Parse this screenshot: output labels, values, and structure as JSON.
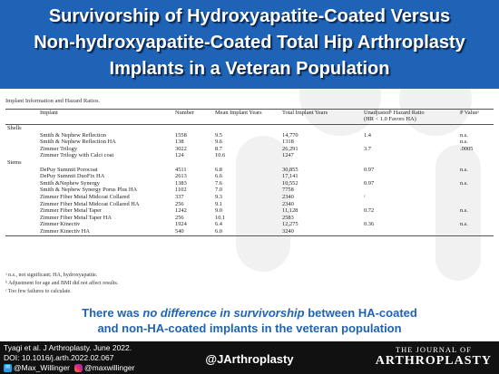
{
  "title": "Survivorship of Hydroxyapatite-Coated Versus\nNon-hydroxyapatite-Coated Total Hip Arthroplasty\nImplants in a Veteran Population",
  "table": {
    "caption": "Implant Information and Hazard Ratios.",
    "headers": {
      "implant": "Implant",
      "number": "Number",
      "mean": "Mean Implant Years",
      "total": "Total Implant Years",
      "hr_line1": "Unadjustedᵇ Hazard Ratio",
      "hr_line2": "(HR < 1.0 Favors HA)",
      "p": "P Valueᵃ"
    },
    "sections": [
      {
        "name": "Shells",
        "rows": [
          {
            "implant": "Smith & Nephew Reflection",
            "number": "1558",
            "mean": "9.5",
            "total": "14,770",
            "hr": "1.4",
            "p": "n.s."
          },
          {
            "implant": "Smith & Nephew Reflection HA",
            "number": "138",
            "mean": "9.6",
            "total": "1318",
            "hr": "",
            "p": "n.s."
          },
          {
            "implant": "Zimmer Trilogy",
            "number": "3022",
            "mean": "8.7",
            "total": "26,291",
            "hr": "3.7",
            "p": ".0005"
          },
          {
            "implant": "Zimmer Trilogy with Calci coat",
            "number": "124",
            "mean": "10.6",
            "total": "1247",
            "hr": "",
            "p": ""
          }
        ]
      },
      {
        "name": "Stems",
        "rows": [
          {
            "implant": "DePuy Summit Porocoat",
            "number": "4511",
            "mean": "6.8",
            "total": "30,855",
            "hr": "0.97",
            "p": "n.s."
          },
          {
            "implant": "DePuy Summit DuoFix HA",
            "number": "2613",
            "mean": "6.6",
            "total": "17,141",
            "hr": "",
            "p": ""
          },
          {
            "implant": "Smith &Nephew Synergy",
            "number": "1383",
            "mean": "7.6",
            "total": "10,552",
            "hr": "0.97",
            "p": "n.s."
          },
          {
            "implant": "Smith & Nephew Synergy Porus Plus HA",
            "number": "1102",
            "mean": "7.0",
            "total": "7758",
            "hr": "",
            "p": ""
          },
          {
            "implant": "Zimmer Fiber Metal Midcoat Collared",
            "number": "337",
            "mean": "9.3",
            "total": "2340",
            "hr": "ᶜ",
            "p": ""
          },
          {
            "implant": "Zimmer Fiber Metal Midcoat Collared HA",
            "number": "256",
            "mean": "9.1",
            "total": "2340",
            "hr": "",
            "p": ""
          },
          {
            "implant": "Zimmer Fiber Metal Taper",
            "number": "1242",
            "mean": "9.0",
            "total": "11,128",
            "hr": "0.72",
            "p": "n.s."
          },
          {
            "implant": "Zimmer Fiber Metal Taper HA",
            "number": "256",
            "mean": "10.1",
            "total": "2583",
            "hr": "",
            "p": ""
          },
          {
            "implant": "Zimmer Kinectiv",
            "number": "1924",
            "mean": "6.4",
            "total": "12,275",
            "hr": "0.36",
            "p": "n.s."
          },
          {
            "implant": "Zimmer Kinectiv HA",
            "number": "540",
            "mean": "6.0",
            "total": "3240",
            "hr": "",
            "p": ""
          }
        ]
      }
    ],
    "footnotes": [
      "ᵃ n.s., not significant; HA, hydroxyapatite.",
      "ᵇ Adjustment for age and BMI did not affect results.",
      "ᶜ Too few failures to calculate."
    ]
  },
  "conclusion": {
    "part1": "There was ",
    "emphasis": "no difference in survivorship",
    "part2": " between HA-coated",
    "line2": "and non-HA-coated implants in the veteran population"
  },
  "footer": {
    "citation_line1": "Tyagi et al. J Arthroplasty. June 2022.",
    "citation_line2": "DOI: 10.1016/j.arth.2022.02.067",
    "twitter_handle": "@Max_Willinger",
    "instagram_handle": "@maxwillinger",
    "center_handle": "@JArthroplasty",
    "journal_line1": "THE JOURNAL OF",
    "journal_line2": "ARTHROPLASTY"
  },
  "colors": {
    "header_blue": "#1f63b7",
    "footer_black": "#111111"
  }
}
